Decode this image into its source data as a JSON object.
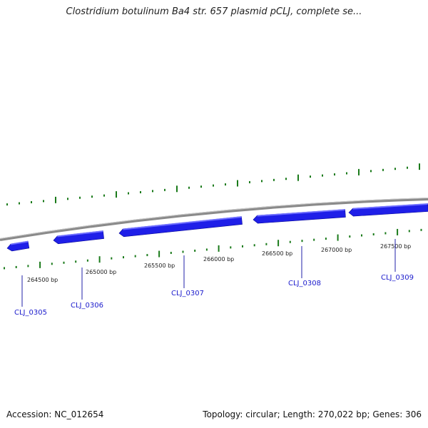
{
  "title": "Clostridium botulinum Ba4 str. 657 plasmid pCLJ, complete se...",
  "footer": {
    "accession": "Accession: NC_012654",
    "summary": "Topology: circular; Length: 270,022 bp; Genes: 306"
  },
  "colors": {
    "gene": "#1f1fe8",
    "gene_top": "#6e6eff",
    "backbone": "#8a8a8a",
    "tick": "#1a7a1a",
    "label": "#1a1acc"
  },
  "ticks": [
    "264500 bp",
    "265000 bp",
    "265500 bp",
    "266000 bp",
    "266500 bp",
    "267000 bp",
    "267500 bp"
  ],
  "genes": [
    "CLJ_0305",
    "CLJ_0306",
    "CLJ_0307",
    "CLJ_0308",
    "CLJ_0309"
  ]
}
